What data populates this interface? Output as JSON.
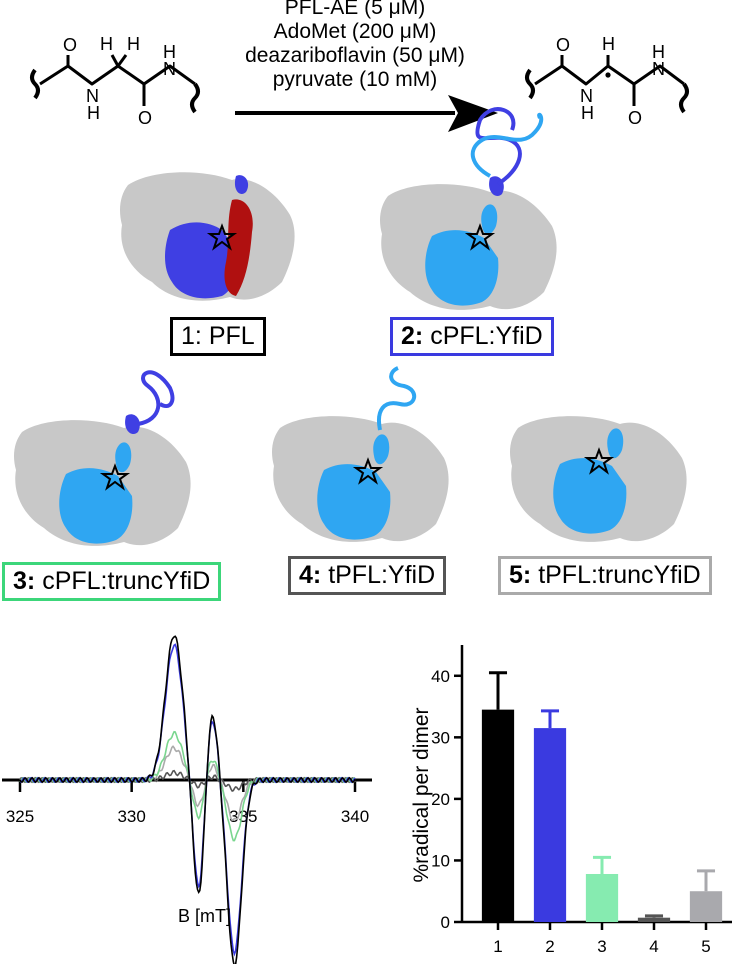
{
  "reaction": {
    "conditions": [
      "PFL-AE (5 μM)",
      "AdoMet (200 μM)",
      "deazariboflavin (50 μM)",
      "pyruvate (10 mM)"
    ]
  },
  "structures": [
    {
      "num": "1:",
      "name": "PFL",
      "frame_color": "#000000"
    },
    {
      "num": "2:",
      "name": "cPFL:YfiD",
      "frame_color": "#3a3ae0"
    },
    {
      "num": "3:",
      "name": "cPFL:truncYfiD",
      "frame_color": "#3cd67a"
    },
    {
      "num": "4:",
      "name": "tPFL:YfiD",
      "frame_color": "#555555"
    },
    {
      "num": "5:",
      "name": "tPFL:truncYfiD",
      "frame_color": "#aaaaaa"
    }
  ],
  "colors": {
    "protein_grey": "#c8c8c8",
    "domain_blue": "#3f3fe3",
    "domain_lightblue": "#2fa6f2",
    "domain_red": "#b01010"
  },
  "epr": {
    "xlabel": "B [mT]",
    "xticks": [
      "325",
      "330",
      "335",
      "340"
    ],
    "xlim": [
      325,
      340
    ],
    "series_colors": [
      "#000000",
      "#3a3ae0",
      "#7ad68f",
      "#555555",
      "#aaaaaa"
    ]
  },
  "chart_data": {
    "type": "bar",
    "categories": [
      "1",
      "2",
      "3",
      "4",
      "5"
    ],
    "values": [
      34.5,
      31.5,
      7.8,
      0.7,
      5.0
    ],
    "errors": [
      6.0,
      2.8,
      2.7,
      0.3,
      3.3
    ],
    "colors": [
      "#000000",
      "#3a3ae0",
      "#86ebb0",
      "#555555",
      "#a9a9ad"
    ],
    "ylabel": "%radical per dimer",
    "xlabel": "",
    "yticks": [
      "0",
      "10",
      "20",
      "30",
      "40"
    ],
    "ylim": [
      0,
      45
    ]
  }
}
